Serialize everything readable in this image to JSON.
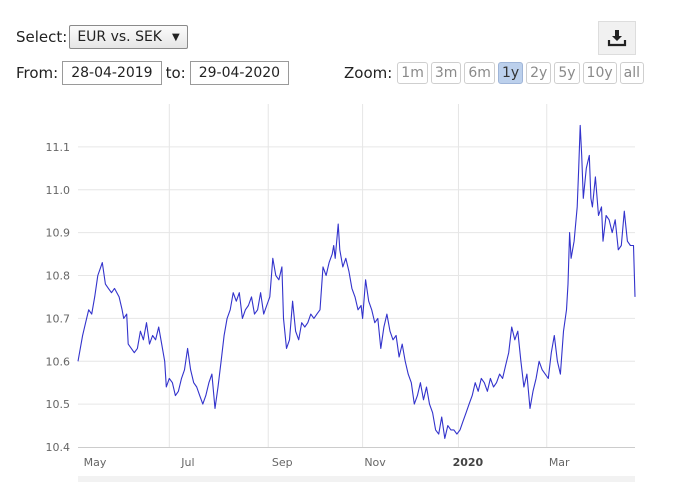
{
  "controls": {
    "select_label": "Select:",
    "select_value": "EUR vs. SEK",
    "from_label": "From:",
    "from_value": "28-04-2019",
    "to_label": "to:",
    "to_value": "29-04-2020",
    "zoom_label": "Zoom:",
    "zoom_buttons": [
      {
        "label": "1m",
        "active": false
      },
      {
        "label": "3m",
        "active": false
      },
      {
        "label": "6m",
        "active": false
      },
      {
        "label": "1y",
        "active": true
      },
      {
        "label": "2y",
        "active": false
      },
      {
        "label": "5y",
        "active": false
      },
      {
        "label": "10y",
        "active": false
      },
      {
        "label": "all",
        "active": false
      }
    ]
  },
  "chart_data": {
    "type": "line",
    "title": "",
    "xlabel": "",
    "ylabel": "",
    "series": [
      {
        "color": "#3333cc",
        "points": [
          [
            "2019-04-29",
            10.6
          ],
          [
            "2019-05-02",
            10.66
          ],
          [
            "2019-05-04",
            10.69
          ],
          [
            "2019-05-06",
            10.72
          ],
          [
            "2019-05-08",
            10.71
          ],
          [
            "2019-05-10",
            10.75
          ],
          [
            "2019-05-12",
            10.8
          ],
          [
            "2019-05-14",
            10.82
          ],
          [
            "2019-05-15",
            10.83
          ],
          [
            "2019-05-17",
            10.78
          ],
          [
            "2019-05-19",
            10.77
          ],
          [
            "2019-05-21",
            10.76
          ],
          [
            "2019-05-23",
            10.77
          ],
          [
            "2019-05-26",
            10.75
          ],
          [
            "2019-05-28",
            10.72
          ],
          [
            "2019-05-29",
            10.7
          ],
          [
            "2019-05-31",
            10.71
          ],
          [
            "2019-06-01",
            10.64
          ],
          [
            "2019-06-03",
            10.63
          ],
          [
            "2019-06-05",
            10.62
          ],
          [
            "2019-06-07",
            10.63
          ],
          [
            "2019-06-09",
            10.67
          ],
          [
            "2019-06-11",
            10.65
          ],
          [
            "2019-06-13",
            10.69
          ],
          [
            "2019-06-15",
            10.64
          ],
          [
            "2019-06-17",
            10.66
          ],
          [
            "2019-06-19",
            10.65
          ],
          [
            "2019-06-21",
            10.68
          ],
          [
            "2019-06-23",
            10.64
          ],
          [
            "2019-06-25",
            10.6
          ],
          [
            "2019-06-26",
            10.54
          ],
          [
            "2019-06-28",
            10.56
          ],
          [
            "2019-06-30",
            10.55
          ],
          [
            "2019-07-02",
            10.52
          ],
          [
            "2019-07-04",
            10.53
          ],
          [
            "2019-07-06",
            10.56
          ],
          [
            "2019-07-08",
            10.58
          ],
          [
            "2019-07-10",
            10.63
          ],
          [
            "2019-07-12",
            10.58
          ],
          [
            "2019-07-14",
            10.55
          ],
          [
            "2019-07-16",
            10.54
          ],
          [
            "2019-07-18",
            10.52
          ],
          [
            "2019-07-20",
            10.5
          ],
          [
            "2019-07-22",
            10.52
          ],
          [
            "2019-07-24",
            10.55
          ],
          [
            "2019-07-26",
            10.57
          ],
          [
            "2019-07-28",
            10.49
          ],
          [
            "2019-07-30",
            10.54
          ],
          [
            "2019-08-01",
            10.6
          ],
          [
            "2019-08-03",
            10.66
          ],
          [
            "2019-08-05",
            10.7
          ],
          [
            "2019-08-07",
            10.72
          ],
          [
            "2019-08-09",
            10.76
          ],
          [
            "2019-08-11",
            10.74
          ],
          [
            "2019-08-13",
            10.76
          ],
          [
            "2019-08-15",
            10.7
          ],
          [
            "2019-08-17",
            10.72
          ],
          [
            "2019-08-19",
            10.73
          ],
          [
            "2019-08-21",
            10.75
          ],
          [
            "2019-08-23",
            10.71
          ],
          [
            "2019-08-25",
            10.72
          ],
          [
            "2019-08-27",
            10.76
          ],
          [
            "2019-08-29",
            10.71
          ],
          [
            "2019-08-31",
            10.73
          ],
          [
            "2019-09-02",
            10.75
          ],
          [
            "2019-09-04",
            10.84
          ],
          [
            "2019-09-06",
            10.8
          ],
          [
            "2019-09-08",
            10.79
          ],
          [
            "2019-09-10",
            10.82
          ],
          [
            "2019-09-11",
            10.7
          ],
          [
            "2019-09-13",
            10.63
          ],
          [
            "2019-09-15",
            10.65
          ],
          [
            "2019-09-17",
            10.74
          ],
          [
            "2019-09-19",
            10.67
          ],
          [
            "2019-09-21",
            10.65
          ],
          [
            "2019-09-23",
            10.69
          ],
          [
            "2019-09-25",
            10.68
          ],
          [
            "2019-09-27",
            10.69
          ],
          [
            "2019-09-29",
            10.71
          ],
          [
            "2019-10-01",
            10.7
          ],
          [
            "2019-10-03",
            10.71
          ],
          [
            "2019-10-05",
            10.72
          ],
          [
            "2019-10-07",
            10.82
          ],
          [
            "2019-10-09",
            10.8
          ],
          [
            "2019-10-11",
            10.83
          ],
          [
            "2019-10-13",
            10.85
          ],
          [
            "2019-10-14",
            10.87
          ],
          [
            "2019-10-15",
            10.84
          ],
          [
            "2019-10-17",
            10.92
          ],
          [
            "2019-10-18",
            10.86
          ],
          [
            "2019-10-20",
            10.82
          ],
          [
            "2019-10-22",
            10.84
          ],
          [
            "2019-10-24",
            10.81
          ],
          [
            "2019-10-26",
            10.77
          ],
          [
            "2019-10-28",
            10.75
          ],
          [
            "2019-10-30",
            10.72
          ],
          [
            "2019-11-01",
            10.73
          ],
          [
            "2019-11-02",
            10.7
          ],
          [
            "2019-11-04",
            10.79
          ],
          [
            "2019-11-06",
            10.74
          ],
          [
            "2019-11-08",
            10.72
          ],
          [
            "2019-11-10",
            10.69
          ],
          [
            "2019-11-12",
            10.7
          ],
          [
            "2019-11-14",
            10.63
          ],
          [
            "2019-11-16",
            10.68
          ],
          [
            "2019-11-18",
            10.71
          ],
          [
            "2019-11-20",
            10.67
          ],
          [
            "2019-11-22",
            10.65
          ],
          [
            "2019-11-24",
            10.66
          ],
          [
            "2019-11-26",
            10.61
          ],
          [
            "2019-11-28",
            10.64
          ],
          [
            "2019-11-30",
            10.6
          ],
          [
            "2019-12-02",
            10.57
          ],
          [
            "2019-12-04",
            10.55
          ],
          [
            "2019-12-06",
            10.5
          ],
          [
            "2019-12-08",
            10.52
          ],
          [
            "2019-12-10",
            10.55
          ],
          [
            "2019-12-12",
            10.51
          ],
          [
            "2019-12-14",
            10.54
          ],
          [
            "2019-12-16",
            10.5
          ],
          [
            "2019-12-18",
            10.48
          ],
          [
            "2019-12-20",
            10.44
          ],
          [
            "2019-12-22",
            10.43
          ],
          [
            "2019-12-24",
            10.47
          ],
          [
            "2019-12-26",
            10.42
          ],
          [
            "2019-12-28",
            10.45
          ],
          [
            "2019-12-30",
            10.44
          ],
          [
            "2020-01-01",
            10.44
          ],
          [
            "2020-01-03",
            10.43
          ],
          [
            "2020-01-05",
            10.44
          ],
          [
            "2020-01-07",
            10.46
          ],
          [
            "2020-01-09",
            10.48
          ],
          [
            "2020-01-11",
            10.5
          ],
          [
            "2020-01-13",
            10.52
          ],
          [
            "2020-01-15",
            10.55
          ],
          [
            "2020-01-17",
            10.53
          ],
          [
            "2020-01-19",
            10.56
          ],
          [
            "2020-01-21",
            10.55
          ],
          [
            "2020-01-23",
            10.53
          ],
          [
            "2020-01-25",
            10.56
          ],
          [
            "2020-01-27",
            10.54
          ],
          [
            "2020-01-29",
            10.55
          ],
          [
            "2020-01-31",
            10.57
          ],
          [
            "2020-02-02",
            10.56
          ],
          [
            "2020-02-04",
            10.59
          ],
          [
            "2020-02-06",
            10.62
          ],
          [
            "2020-02-08",
            10.68
          ],
          [
            "2020-02-10",
            10.65
          ],
          [
            "2020-02-12",
            10.67
          ],
          [
            "2020-02-14",
            10.6
          ],
          [
            "2020-02-16",
            10.54
          ],
          [
            "2020-02-18",
            10.57
          ],
          [
            "2020-02-20",
            10.49
          ],
          [
            "2020-02-22",
            10.53
          ],
          [
            "2020-02-24",
            10.56
          ],
          [
            "2020-02-26",
            10.6
          ],
          [
            "2020-02-28",
            10.58
          ],
          [
            "2020-03-01",
            10.57
          ],
          [
            "2020-03-03",
            10.56
          ],
          [
            "2020-03-05",
            10.62
          ],
          [
            "2020-03-07",
            10.66
          ],
          [
            "2020-03-09",
            10.6
          ],
          [
            "2020-03-11",
            10.57
          ],
          [
            "2020-03-13",
            10.67
          ],
          [
            "2020-03-15",
            10.72
          ],
          [
            "2020-03-16",
            10.78
          ],
          [
            "2020-03-17",
            10.9
          ],
          [
            "2020-03-18",
            10.84
          ],
          [
            "2020-03-20",
            10.88
          ],
          [
            "2020-03-22",
            10.96
          ],
          [
            "2020-03-23",
            11.05
          ],
          [
            "2020-03-24",
            11.15
          ],
          [
            "2020-03-25",
            11.08
          ],
          [
            "2020-03-26",
            10.98
          ],
          [
            "2020-03-28",
            11.05
          ],
          [
            "2020-03-30",
            11.08
          ],
          [
            "2020-03-31",
            10.98
          ],
          [
            "2020-04-01",
            10.96
          ],
          [
            "2020-04-03",
            11.03
          ],
          [
            "2020-04-05",
            10.94
          ],
          [
            "2020-04-07",
            10.96
          ],
          [
            "2020-04-08",
            10.88
          ],
          [
            "2020-04-10",
            10.94
          ],
          [
            "2020-04-12",
            10.93
          ],
          [
            "2020-04-14",
            10.9
          ],
          [
            "2020-04-16",
            10.93
          ],
          [
            "2020-04-18",
            10.86
          ],
          [
            "2020-04-20",
            10.87
          ],
          [
            "2020-04-22",
            10.95
          ],
          [
            "2020-04-24",
            10.88
          ],
          [
            "2020-04-26",
            10.87
          ],
          [
            "2020-04-28",
            10.87
          ],
          [
            "2020-04-29",
            10.75
          ]
        ]
      }
    ],
    "ylim": [
      10.4,
      11.2
    ],
    "yticks": [
      "10.4",
      "10.5",
      "10.6",
      "10.7",
      "10.8",
      "10.9",
      "11.0",
      "11.1"
    ],
    "xlim": [
      "2019-04-29",
      "2020-04-29"
    ],
    "xticks": [
      {
        "date": "2019-05-01",
        "label": "May",
        "bold": false
      },
      {
        "date": "2019-07-01",
        "label": "Jul",
        "bold": false
      },
      {
        "date": "2019-09-01",
        "label": "Sep",
        "bold": false
      },
      {
        "date": "2019-11-01",
        "label": "Nov",
        "bold": false
      },
      {
        "date": "2020-01-01",
        "label": "2020",
        "bold": true
      },
      {
        "date": "2020-03-01",
        "label": "Mar",
        "bold": false
      }
    ],
    "vgrid_dates": [
      "2019-06-28",
      "2019-09-01",
      "2019-11-02",
      "2020-01-04",
      "2020-03-02"
    ],
    "grid": true,
    "legend": "none"
  }
}
